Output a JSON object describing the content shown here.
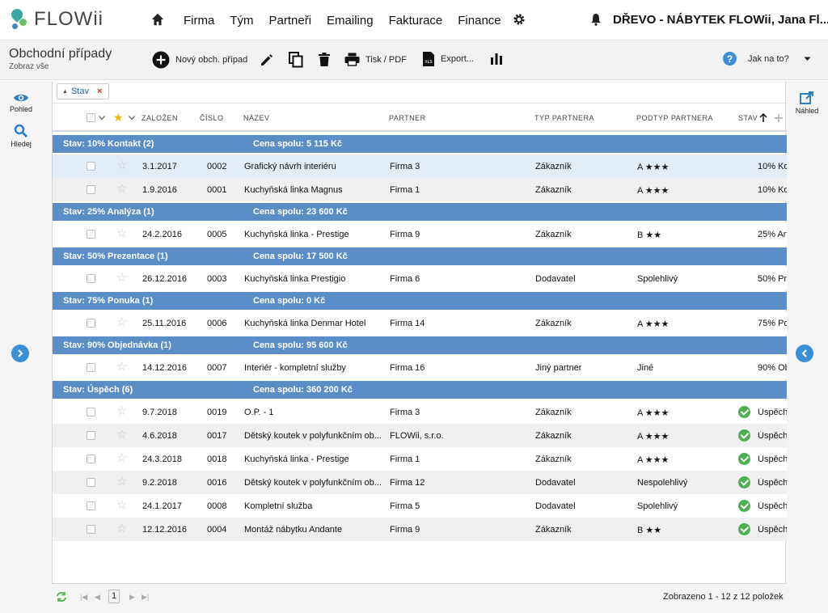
{
  "app": {
    "logo_text": "FLOWii",
    "nav": [
      "Firma",
      "Tým",
      "Partneři",
      "Emailing",
      "Fakturace",
      "Finance"
    ],
    "company": "DŘEVO - NÁBYTEK FLOWii, Jana Fl..."
  },
  "toolbar": {
    "title": "Obchodní případy",
    "subtitle": "Zobraz vše",
    "new_case": "Nový obch. případ",
    "print": "Tisk / PDF",
    "export": "Export...",
    "help": "Jak na to?"
  },
  "leftrail": {
    "view": "Pohled",
    "search": "Hledej"
  },
  "rightrail": {
    "preview": "Náhled"
  },
  "filter": {
    "chip": "Stav"
  },
  "columns": {
    "created": "Založen",
    "number": "Číslo",
    "name": "Název",
    "partner": "Partner",
    "partner_type": "Typ partnera",
    "partner_subtype": "Podtyp partnera",
    "state": "Stav"
  },
  "groups": [
    {
      "label": "Stav: 10% Kontakt (2)",
      "sum": "Cena spolu: 5 115 Kč",
      "rows": [
        {
          "created": "3.1.2017",
          "number": "0002",
          "name": "Grafický návrh interiéru",
          "partner": "Firma 3",
          "type": "Zákazník",
          "subtype": "A ★★★",
          "state": "10% Ko",
          "highlight": true
        },
        {
          "created": "1.9.2016",
          "number": "0001",
          "name": "Kuchyňská linka Magnus",
          "partner": "Firma 1",
          "type": "Zákazník",
          "subtype": "A ★★★",
          "state": "10% Ko"
        }
      ]
    },
    {
      "label": "Stav: 25% Analýza (1)",
      "sum": "Cena spolu: 23 600 Kč",
      "rows": [
        {
          "created": "24.2.2016",
          "number": "0005",
          "name": "Kuchyňská linka - Prestige",
          "partner": "Firma 9",
          "type": "Zákazník",
          "subtype": "B ★★",
          "state": "25% An"
        }
      ]
    },
    {
      "label": "Stav: 50% Prezentace (1)",
      "sum": "Cena spolu: 17 500 Kč",
      "rows": [
        {
          "created": "26.12.2016",
          "number": "0003",
          "name": "Kuchyňská linka Prestigio",
          "partner": "Firma 6",
          "type": "Dodavatel",
          "subtype": "Spolehlivý",
          "state": "50% Pre"
        }
      ]
    },
    {
      "label": "Stav: 75% Ponuka (1)",
      "sum": "Cena spolu: 0 Kč",
      "rows": [
        {
          "created": "25.11.2016",
          "number": "0006",
          "name": "Kuchyňská linka Denmar Hotel",
          "partner": "Firma 14",
          "type": "Zákazník",
          "subtype": "A ★★★",
          "state": "75% Po"
        }
      ]
    },
    {
      "label": "Stav: 90% Objednávka (1)",
      "sum": "Cena spolu: 95 600 Kč",
      "rows": [
        {
          "created": "14.12.2016",
          "number": "0007",
          "name": "Interiér - kompletní služby",
          "partner": "Firma 16",
          "type": "Jiný partner",
          "subtype": "Jiné",
          "state": "90% Ob"
        }
      ]
    },
    {
      "label": "Stav: Úspěch (6)",
      "sum": "Cena spolu: 360 200 Kč",
      "rows": [
        {
          "created": "9.7.2018",
          "number": "0019",
          "name": "O.P. - 1",
          "partner": "Firma 3",
          "type": "Zákazník",
          "subtype": "A ★★★",
          "state": "Úspěch",
          "ok": true
        },
        {
          "created": "4.6.2018",
          "number": "0017",
          "name": "Dětský koutek v polyfunkčním ob...",
          "partner": "FLOWii, s.r.o.",
          "type": "Zákazník",
          "subtype": "A ★★★",
          "state": "Úspěch",
          "ok": true
        },
        {
          "created": "24.3.2018",
          "number": "0018",
          "name": "Kuchyňská linka - Prestige",
          "partner": "Firma 1",
          "type": "Zákazník",
          "subtype": "A ★★★",
          "state": "Úspěch",
          "ok": true
        },
        {
          "created": "9.2.2018",
          "number": "0016",
          "name": "Dětský koutek v polyfunkčním ob...",
          "partner": "Firma 12",
          "type": "Dodavatel",
          "subtype": "Nespolehlivý",
          "state": "Úspěch",
          "ok": true
        },
        {
          "created": "24.1.2017",
          "number": "0008",
          "name": "Kompletní služba",
          "partner": "Firma 5",
          "type": "Dodavatel",
          "subtype": "Spolehlivý",
          "state": "Úspěch",
          "ok": true
        },
        {
          "created": "12.12.2016",
          "number": "0004",
          "name": "Montáž nábytku Andante",
          "partner": "Firma 9",
          "type": "Zákazník",
          "subtype": "B ★★",
          "state": "Úspěch",
          "ok": true
        }
      ]
    }
  ],
  "pager": {
    "page": "1",
    "info": "Zobrazeno 1 - 12 z 12 položek"
  },
  "colors": {
    "accent": "#3a8fd6",
    "group_bar": "#5b8ec6",
    "success": "#4caf50"
  },
  "icons": [
    "home-icon",
    "gear-icon",
    "bell-icon",
    "plus-circle-icon",
    "pencil-icon",
    "copy-icon",
    "trash-icon",
    "printer-icon",
    "xls-icon",
    "bar-chart-icon",
    "help-icon",
    "eye-icon",
    "search-icon",
    "external-link-icon",
    "refresh-icon",
    "star-icon",
    "check-circle-icon"
  ]
}
